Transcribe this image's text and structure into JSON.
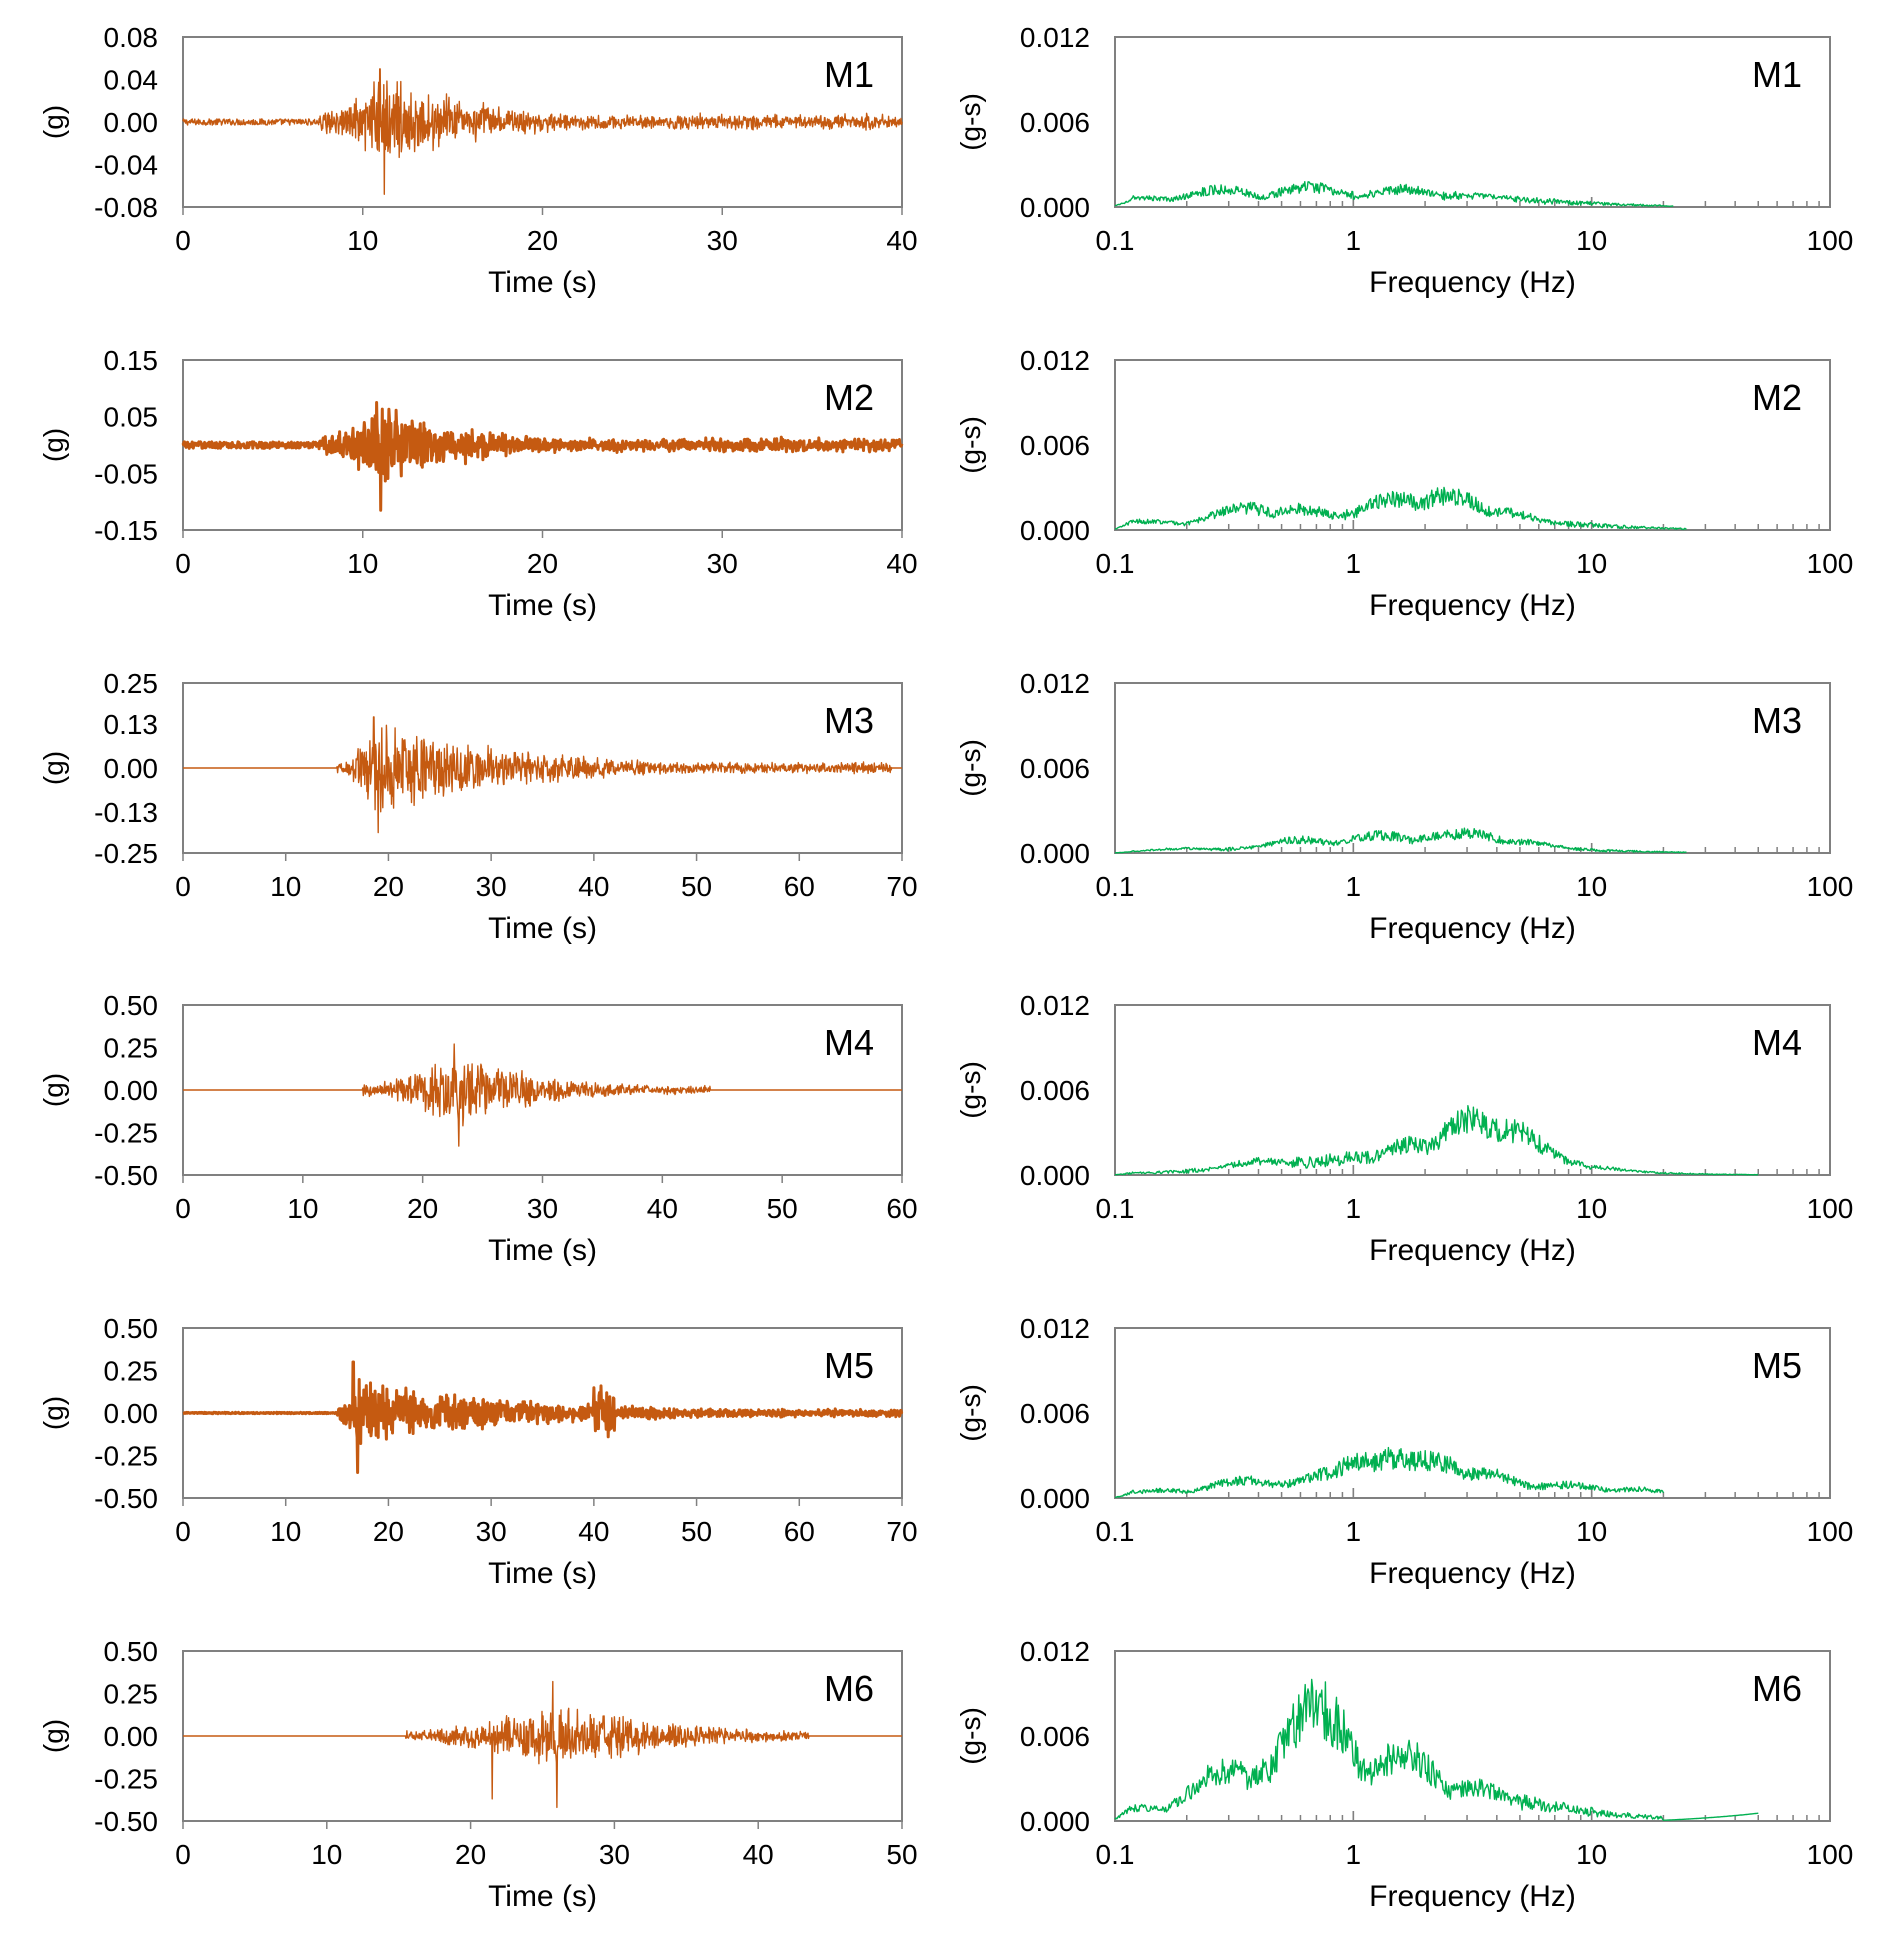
{
  "colors": {
    "time_series": "#c55a11",
    "spectrum": "#00b050",
    "axis": "#808080",
    "text": "#000000"
  },
  "chart_data": [
    {
      "id": "M1-time",
      "type": "line",
      "label": "M1",
      "xlabel": "Time (s)",
      "ylabel": "(g)",
      "xlim": [
        0,
        40
      ],
      "ylim": [
        -0.08,
        0.08
      ],
      "xticks": [
        "0",
        "10",
        "20",
        "30",
        "40"
      ],
      "yticks": [
        "0.08",
        "0.04",
        "0.00",
        "-0.04",
        "-0.08"
      ],
      "signal": {
        "start": 7.5,
        "peak_time": 11.2,
        "end": 40,
        "peak_pos": 0.05,
        "peak_neg": -0.068,
        "amp": 0.035,
        "noise": 0.003,
        "tail": 0.18,
        "dense": false
      }
    },
    {
      "id": "M1-fourier",
      "type": "line",
      "label": "M1",
      "xscale": "log",
      "xlabel": "Frequency (Hz)",
      "ylabel": "(g-s)",
      "xlim": [
        0.1,
        100
      ],
      "ylim": [
        0,
        0.012
      ],
      "xticks": [
        "0.1",
        "1",
        "10",
        "100"
      ],
      "yticks": [
        "0.012",
        "0.006",
        "0.000"
      ],
      "spectrum": {
        "peaks": [
          [
            0.14,
            0.0008
          ],
          [
            0.28,
            0.0016
          ],
          [
            0.65,
            0.0018
          ],
          [
            1.6,
            0.0016
          ],
          [
            3.2,
            0.001
          ]
        ],
        "fmax": 22,
        "level": 0.0012
      }
    },
    {
      "id": "M2-time",
      "type": "line",
      "label": "M2",
      "xlabel": "Time (s)",
      "ylabel": "(g)",
      "xlim": [
        0,
        40
      ],
      "ylim": [
        -0.15,
        0.15
      ],
      "xticks": [
        "0",
        "10",
        "20",
        "30",
        "40"
      ],
      "yticks": [
        "0.15",
        "0.05",
        "-0.05",
        "-0.15"
      ],
      "signal": {
        "start": 7.5,
        "peak_time": 11,
        "end": 40,
        "peak_pos": 0.075,
        "peak_neg": -0.115,
        "amp": 0.055,
        "noise": 0.006,
        "tail": 0.2,
        "dense": true
      }
    },
    {
      "id": "M2-fourier",
      "type": "line",
      "label": "M2",
      "xscale": "log",
      "xlabel": "Frequency (Hz)",
      "ylabel": "(g-s)",
      "xlim": [
        0.1,
        100
      ],
      "ylim": [
        0,
        0.012
      ],
      "xticks": [
        "0.1",
        "1",
        "10",
        "100"
      ],
      "yticks": [
        "0.012",
        "0.006",
        "0.000"
      ],
      "spectrum": {
        "peaks": [
          [
            0.14,
            0.0008
          ],
          [
            0.35,
            0.002
          ],
          [
            0.6,
            0.0019
          ],
          [
            1.5,
            0.0028
          ],
          [
            2.5,
            0.0031
          ],
          [
            4.2,
            0.0016
          ]
        ],
        "fmax": 25,
        "level": 0.0016
      }
    },
    {
      "id": "M3-time",
      "type": "line",
      "label": "M3",
      "xlabel": "Time (s)",
      "ylabel": "(g)",
      "xlim": [
        0,
        70
      ],
      "ylim": [
        -0.25,
        0.25
      ],
      "xticks": [
        "0",
        "10",
        "20",
        "30",
        "40",
        "50",
        "60",
        "70"
      ],
      "yticks": [
        "0.25",
        "0.13",
        "0.00",
        "-0.13",
        "-0.25"
      ],
      "signal": {
        "start": 15,
        "peak_time": 19,
        "end": 69,
        "peak_pos": 0.15,
        "peak_neg": -0.19,
        "amp": 0.11,
        "noise": 0.0,
        "tail": 0.07,
        "dense": false
      }
    },
    {
      "id": "M3-fourier",
      "type": "line",
      "label": "M3",
      "xscale": "log",
      "xlabel": "Frequency (Hz)",
      "ylabel": "(g-s)",
      "xlim": [
        0.1,
        100
      ],
      "ylim": [
        0,
        0.012
      ],
      "xticks": [
        "0.1",
        "1",
        "10",
        "100"
      ],
      "yticks": [
        "0.012",
        "0.006",
        "0.000"
      ],
      "spectrum": {
        "peaks": [
          [
            0.2,
            0.0004
          ],
          [
            0.6,
            0.0012
          ],
          [
            1.3,
            0.0016
          ],
          [
            2.5,
            0.0017
          ],
          [
            3.0,
            0.0018
          ],
          [
            5,
            0.001
          ]
        ],
        "fmax": 25,
        "level": 0.001
      }
    },
    {
      "id": "M4-time",
      "type": "line",
      "label": "M4",
      "xlabel": "Time (s)",
      "ylabel": "(g)",
      "xlim": [
        0,
        60
      ],
      "ylim": [
        -0.5,
        0.5
      ],
      "xticks": [
        "0",
        "10",
        "20",
        "30",
        "40",
        "50",
        "60"
      ],
      "yticks": [
        "0.50",
        "0.25",
        "0.00",
        "-0.25",
        "-0.50"
      ],
      "signal": {
        "start": 15,
        "peak_time": 23,
        "end": 44,
        "peak_pos": 0.27,
        "peak_neg": -0.33,
        "amp": 0.17,
        "noise": 0.0,
        "tail": 0.13,
        "dense": false
      }
    },
    {
      "id": "M4-fourier",
      "type": "line",
      "label": "M4",
      "xscale": "log",
      "xlabel": "Frequency (Hz)",
      "ylabel": "(g-s)",
      "xlim": [
        0.1,
        100
      ],
      "ylim": [
        0,
        0.012
      ],
      "xticks": [
        "0.1",
        "1",
        "10",
        "100"
      ],
      "yticks": [
        "0.012",
        "0.006",
        "0.000"
      ],
      "spectrum": {
        "peaks": [
          [
            0.42,
            0.0013
          ],
          [
            1.0,
            0.0012
          ],
          [
            1.8,
            0.0028
          ],
          [
            2.5,
            0.003
          ],
          [
            3.2,
            0.005
          ],
          [
            4.5,
            0.004
          ],
          [
            6,
            0.0018
          ],
          [
            10,
            0.0007
          ]
        ],
        "fmax": 50,
        "level": 0.0018
      }
    },
    {
      "id": "M5-time",
      "type": "line",
      "label": "M5",
      "xlabel": "Time (s)",
      "ylabel": "(g)",
      "xlim": [
        0,
        70
      ],
      "ylim": [
        -0.5,
        0.5
      ],
      "xticks": [
        "0",
        "10",
        "20",
        "30",
        "40",
        "50",
        "60",
        "70"
      ],
      "yticks": [
        "0.50",
        "0.25",
        "0.00",
        "-0.25",
        "-0.50"
      ],
      "signal": {
        "start": 15,
        "peak_time": 17,
        "end": 70,
        "peak_pos": 0.3,
        "peak_neg": -0.35,
        "amp": 0.15,
        "noise": 0.004,
        "tail": 0.06,
        "dense": true,
        "burst": [
          40,
          42
        ]
      }
    },
    {
      "id": "M5-fourier",
      "type": "line",
      "label": "M5",
      "xscale": "log",
      "xlabel": "Frequency (Hz)",
      "ylabel": "(g-s)",
      "xlim": [
        0.1,
        100
      ],
      "ylim": [
        0,
        0.012
      ],
      "xticks": [
        "0.1",
        "1",
        "10",
        "100"
      ],
      "yticks": [
        "0.012",
        "0.006",
        "0.000"
      ],
      "spectrum": {
        "peaks": [
          [
            0.16,
            0.0007
          ],
          [
            0.35,
            0.0016
          ],
          [
            0.8,
            0.0022
          ],
          [
            1.1,
            0.0033
          ],
          [
            1.5,
            0.0037
          ],
          [
            2.1,
            0.0034
          ],
          [
            3.5,
            0.0022
          ],
          [
            8,
            0.0012
          ],
          [
            15,
            0.0008
          ]
        ],
        "fmax": 18,
        "level": 0.002
      }
    },
    {
      "id": "M6-time",
      "type": "line",
      "label": "M6",
      "xlabel": "Time (s)",
      "ylabel": "(g)",
      "xlim": [
        0,
        50
      ],
      "ylim": [
        -0.5,
        0.5
      ],
      "xticks": [
        "0",
        "10",
        "20",
        "30",
        "40",
        "50"
      ],
      "yticks": [
        "0.50",
        "0.25",
        "0.00",
        "-0.25",
        "-0.50"
      ],
      "signal": {
        "start": 15.5,
        "peak_time": 26,
        "end": 43.5,
        "peak_pos": 0.32,
        "peak_neg": -0.42,
        "amp": 0.16,
        "noise": 0.0,
        "tail": 0.12,
        "dense": false,
        "second": [
          21.5,
          -0.37
        ]
      }
    },
    {
      "id": "M6-fourier",
      "type": "line",
      "label": "M6",
      "xscale": "log",
      "xlabel": "Frequency (Hz)",
      "ylabel": "(g-s)",
      "xlim": [
        0.1,
        100
      ],
      "ylim": [
        0,
        0.012
      ],
      "xticks": [
        "0.1",
        "1",
        "10",
        "100"
      ],
      "yticks": [
        "0.012",
        "0.006",
        "0.000"
      ],
      "spectrum": {
        "peaks": [
          [
            0.13,
            0.0012
          ],
          [
            0.3,
            0.0046
          ],
          [
            0.45,
            0.0045
          ],
          [
            0.7,
            0.0105
          ],
          [
            0.85,
            0.0055
          ],
          [
            1.6,
            0.006
          ],
          [
            3.2,
            0.003
          ],
          [
            6,
            0.0012
          ]
        ],
        "fmax": 50,
        "level": 0.003,
        "tail_rise": 0.0005
      }
    }
  ]
}
